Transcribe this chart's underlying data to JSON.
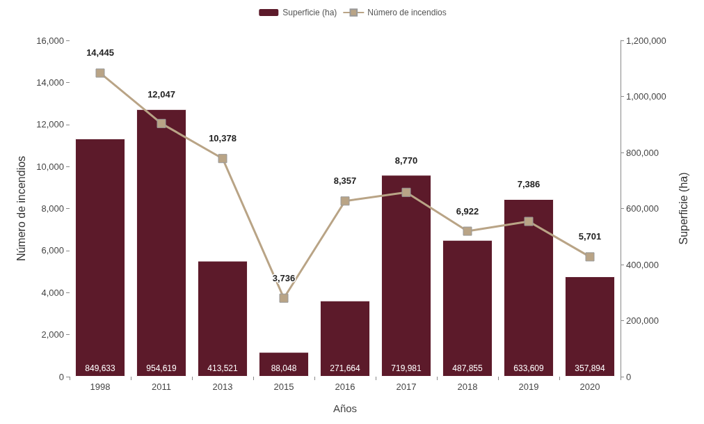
{
  "chart_data": {
    "type": "bar",
    "xlabel": "Años",
    "ylabel": "Número de incendios",
    "y2label": "Superficie (ha)",
    "categories": [
      "1998",
      "2011",
      "2013",
      "2015",
      "2016",
      "2017",
      "2018",
      "2019",
      "2020"
    ],
    "series": [
      {
        "name": "Superficie (ha)",
        "axis": "y2",
        "color": "#5c1a2a",
        "values": [
          849633,
          954619,
          413521,
          88048,
          271664,
          719981,
          487855,
          633609,
          357894
        ],
        "value_labels": [
          "849,633",
          "954,619",
          "413,521",
          "88,048",
          "271,664",
          "719,981",
          "487,855",
          "633,609",
          "357,894"
        ]
      },
      {
        "name": "Número de incendios",
        "type": "line",
        "axis": "y",
        "color": "#b9a486",
        "marker": "square",
        "values": [
          14445,
          12047,
          10378,
          3736,
          8357,
          8770,
          6922,
          7386,
          5701
        ],
        "value_labels": [
          "14,445",
          "12,047",
          "10,378",
          "3,736",
          "8,357",
          "8,770",
          "6,922",
          "7,386",
          "5,701"
        ]
      }
    ],
    "ylim": [
      0,
      16000
    ],
    "yticks": [
      0,
      {
        "value": 2000,
        "label": "2,000"
      },
      {
        "value": 4000,
        "label": "4,000"
      },
      {
        "value": 6000,
        "label": "6,000"
      },
      {
        "value": 8000,
        "label": "8,000"
      },
      {
        "value": 10000,
        "label": "10,000"
      },
      {
        "value": 12000,
        "label": "12,000"
      },
      {
        "value": 14000,
        "label": "14,000"
      },
      {
        "value": 16000,
        "label": "16,000"
      }
    ],
    "y2lim": [
      0,
      1200000
    ],
    "y2ticks": [
      0,
      {
        "value": 200000,
        "label": "200,000"
      },
      {
        "value": 400000,
        "label": "400,000"
      },
      {
        "value": 600000,
        "label": "600,000"
      },
      {
        "value": 800000,
        "label": "800,000"
      },
      {
        "value": 1000000,
        "label": "1,000,000"
      },
      {
        "value": 1200000,
        "label": "1,200,000"
      }
    ],
    "grid": false,
    "legend": "top"
  }
}
